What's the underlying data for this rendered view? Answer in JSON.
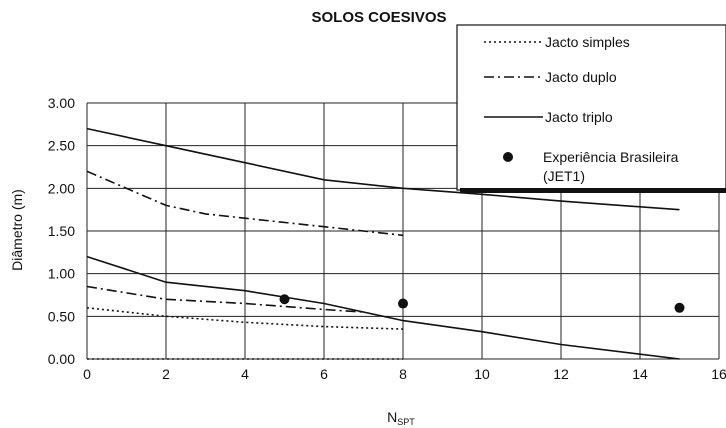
{
  "chart_data": {
    "type": "line",
    "title": "SOLOS COESIVOS",
    "xlabel": "N",
    "xlabel_sub": "SPT",
    "ylabel": "Diâmetro (m)",
    "xlim": [
      0,
      16
    ],
    "ylim": [
      0,
      3
    ],
    "xticks": [
      "0",
      "2",
      "4",
      "6",
      "8",
      "10",
      "12",
      "14",
      "16"
    ],
    "yticks": [
      "0.00",
      "0.50",
      "1.00",
      "1.50",
      "2.00",
      "2.50",
      "3.00"
    ],
    "grid": true,
    "legend_position": "top-right",
    "series": [
      {
        "name": "Jacto simples",
        "style": "dotted",
        "curves": [
          {
            "x": [
              0,
              2,
              4,
              6,
              8
            ],
            "y": [
              0.6,
              0.5,
              0.43,
              0.38,
              0.35
            ]
          },
          {
            "x": [
              0,
              4,
              8
            ],
            "y": [
              0.0,
              0.0,
              0.0
            ]
          }
        ]
      },
      {
        "name": "Jacto duplo",
        "style": "dashdot",
        "curves": [
          {
            "x": [
              0,
              2,
              3,
              4,
              6,
              8
            ],
            "y": [
              2.2,
              1.8,
              1.7,
              1.65,
              1.55,
              1.45
            ]
          },
          {
            "x": [
              0,
              2,
              4,
              6,
              7
            ],
            "y": [
              0.85,
              0.7,
              0.65,
              0.58,
              0.55
            ]
          }
        ]
      },
      {
        "name": "Jacto triplo",
        "style": "solid",
        "curves": [
          {
            "x": [
              0,
              2,
              4,
              6,
              8,
              10,
              12,
              15
            ],
            "y": [
              2.7,
              2.5,
              2.3,
              2.1,
              2.0,
              1.93,
              1.85,
              1.75
            ]
          },
          {
            "x": [
              0,
              2,
              4,
              6,
              8,
              10,
              12,
              15
            ],
            "y": [
              1.2,
              0.9,
              0.8,
              0.65,
              0.45,
              0.32,
              0.17,
              0.0
            ]
          }
        ]
      },
      {
        "name": "Experiência Brasileira (JET1)",
        "style": "marker",
        "points": {
          "x": [
            5,
            8,
            15
          ],
          "y": [
            0.7,
            0.65,
            0.6
          ]
        }
      }
    ],
    "colors": {
      "line": "#111111",
      "grid": "#222222",
      "background": "#ffffff"
    }
  }
}
